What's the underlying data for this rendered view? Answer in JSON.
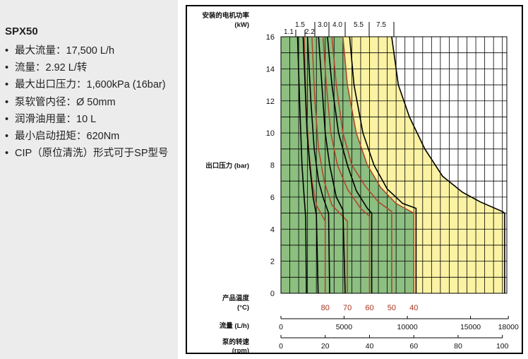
{
  "specs": {
    "title": "SPX50",
    "items": [
      "最大流量：17,500 L/h",
      "流量：2.92 L/转",
      "最大出口压力：1,600kPa (16bar)",
      "泵软管内径：Ø 50mm",
      "润滑油用量：10 L",
      "最小启动扭矩：620Nm",
      "CIP（原位清洗）形式可于SP型号"
    ]
  },
  "chart_data": {
    "type": "line",
    "power_axis_label": "安装的电机功率",
    "power_unit": "(kW)",
    "power_labels": [
      "1.1",
      "1.5",
      "2.2",
      "3.0",
      "4.0",
      "5.5",
      "7.5"
    ],
    "ylabel": "出口压力 (bar)",
    "ylim": [
      0,
      16
    ],
    "yticks": [
      "0",
      "2",
      "4",
      "6",
      "8",
      "10",
      "12",
      "14",
      "16"
    ],
    "temperature_axis_label": "产品温度",
    "temperature_unit": "(°C)",
    "temperature_ticks": [
      {
        "label": "80",
        "rpm": 20
      },
      {
        "label": "70",
        "rpm": 30
      },
      {
        "label": "60",
        "rpm": 40
      },
      {
        "label": "50",
        "rpm": 50
      },
      {
        "label": "40",
        "rpm": 60
      }
    ],
    "flow_axis_label": "流量 (L/h)",
    "flow_ticks": [
      "0",
      "5000",
      "10000",
      "15000",
      "18000"
    ],
    "flow_tick_rpm": [
      0,
      28.5,
      57.1,
      85.6,
      102.7
    ],
    "speed_axis_label": "泵的转速",
    "speed_unit": "(rpm)",
    "speed_ticks": [
      "0",
      "20",
      "40",
      "60",
      "80",
      "100"
    ],
    "xlim": [
      0,
      102
    ],
    "grid": true,
    "regions": [
      {
        "name": "green",
        "color": "#8cbf80",
        "boundary_rpm": 60
      },
      {
        "name": "yellow",
        "color": "#fbf3a3"
      }
    ],
    "power_curves": [
      {
        "label": "1.1",
        "points": [
          [
            7.5,
            16
          ],
          [
            8.4,
            12
          ],
          [
            9.5,
            8
          ],
          [
            10.5,
            6
          ],
          [
            11.2,
            4.7
          ],
          [
            11.5,
            0
          ]
        ]
      },
      {
        "label": "1.5",
        "points": [
          [
            10,
            16
          ],
          [
            10.9,
            13
          ],
          [
            11.8,
            10
          ],
          [
            13,
            8
          ],
          [
            14.5,
            6
          ],
          [
            16,
            4.9
          ],
          [
            16.8,
            0
          ]
        ]
      },
      {
        "label": "2.2",
        "points": [
          [
            12,
            16
          ],
          [
            13.5,
            12
          ],
          [
            15,
            9
          ],
          [
            17,
            7
          ],
          [
            19,
            6
          ],
          [
            21.5,
            5
          ],
          [
            22,
            0
          ]
        ]
      },
      {
        "label": "3.0",
        "points": [
          [
            17,
            16
          ],
          [
            18.5,
            13
          ],
          [
            20,
            10
          ],
          [
            22,
            8
          ],
          [
            25,
            6
          ],
          [
            28,
            5.2
          ],
          [
            29,
            0
          ]
        ]
      },
      {
        "label": "4.0",
        "points": [
          [
            21,
            16
          ],
          [
            23,
            13
          ],
          [
            26,
            10
          ],
          [
            30,
            8
          ],
          [
            34,
            6.4
          ],
          [
            39,
            5.3
          ],
          [
            41,
            5
          ],
          [
            41,
            0
          ]
        ]
      },
      {
        "label": "5.5",
        "points": [
          [
            31,
            16
          ],
          [
            33,
            13
          ],
          [
            37,
            10
          ],
          [
            42,
            8
          ],
          [
            48,
            6.5
          ],
          [
            55,
            5.6
          ],
          [
            61,
            5.3
          ],
          [
            61,
            0
          ]
        ]
      },
      {
        "label": "7.5",
        "points": [
          [
            50,
            16
          ],
          [
            53,
            13
          ],
          [
            58,
            11
          ],
          [
            65,
            9
          ],
          [
            73,
            7.3
          ],
          [
            82,
            6.3
          ],
          [
            90,
            5.7
          ],
          [
            100,
            5.1
          ],
          [
            101,
            5
          ],
          [
            101,
            0
          ]
        ]
      }
    ],
    "temperature_curves": [
      {
        "label": "80",
        "points": [
          [
            10.5,
            16
          ],
          [
            11.3,
            12
          ],
          [
            12.5,
            9
          ],
          [
            14,
            7
          ],
          [
            16,
            5.5
          ],
          [
            20,
            4.5
          ],
          [
            20,
            0
          ]
        ]
      },
      {
        "label": "70",
        "points": [
          [
            14,
            16
          ],
          [
            15.3,
            12
          ],
          [
            17,
            9
          ],
          [
            19.5,
            7
          ],
          [
            23,
            5.5
          ],
          [
            30,
            4.5
          ],
          [
            30,
            0
          ]
        ]
      },
      {
        "label": "60",
        "points": [
          [
            19,
            16
          ],
          [
            20.5,
            13
          ],
          [
            22.5,
            10
          ],
          [
            25.5,
            8
          ],
          [
            30,
            6.5
          ],
          [
            36,
            5.3
          ],
          [
            40,
            4.8
          ],
          [
            40,
            0
          ]
        ]
      },
      {
        "label": "50",
        "points": [
          [
            23,
            16
          ],
          [
            25,
            13
          ],
          [
            28,
            10
          ],
          [
            32,
            8
          ],
          [
            38,
            6.7
          ],
          [
            44,
            5.7
          ],
          [
            50,
            5.1
          ],
          [
            50,
            0
          ]
        ]
      },
      {
        "label": "40",
        "points": [
          [
            28,
            16
          ],
          [
            30,
            13
          ],
          [
            34,
            10
          ],
          [
            39,
            8
          ],
          [
            45,
            6.6
          ],
          [
            52,
            5.6
          ],
          [
            60,
            5
          ],
          [
            60,
            0
          ]
        ]
      }
    ]
  }
}
